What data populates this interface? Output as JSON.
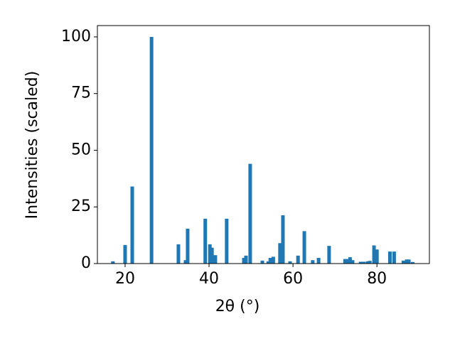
{
  "chart_data": {
    "type": "bar",
    "x_label": "2θ (°)",
    "y_label": "Intensities (scaled)",
    "color": "#1f77b4",
    "x": [
      17.1,
      20.0,
      21.7,
      26.3,
      32.7,
      34.4,
      34.9,
      39.1,
      40.2,
      40.7,
      41.5,
      44.2,
      48.3,
      48.8,
      49.8,
      52.7,
      54.1,
      54.6,
      55.3,
      56.9,
      57.6,
      59.3,
      61.2,
      62.7,
      64.7,
      66.1,
      68.6,
      72.4,
      72.9,
      73.6,
      74.2,
      76.1,
      76.9,
      77.8,
      78.3,
      79.3,
      80.0,
      83.1,
      84.1,
      86.3,
      87.1,
      87.6,
      88.5
    ],
    "values": [
      1,
      8.2,
      34,
      100,
      8.5,
      1.5,
      15.4,
      19.8,
      8.5,
      7,
      3.7,
      19.8,
      2.5,
      3.5,
      44,
      1.3,
      1,
      2.5,
      3,
      9,
      21.3,
      1,
      3.5,
      14.3,
      1.5,
      2.5,
      7.8,
      2,
      2,
      2.8,
      1.5,
      0.8,
      0.8,
      1,
      1.2,
      8,
      6.2,
      5.3,
      5.3,
      1.3,
      1.8,
      1.8,
      0.7
    ],
    "xlim": [
      13.4,
      92.5
    ],
    "ylim": [
      0,
      105
    ],
    "xticks": [
      20,
      40,
      60,
      80
    ],
    "yticks": [
      0,
      25,
      50,
      75,
      100
    ],
    "grid": false
  }
}
